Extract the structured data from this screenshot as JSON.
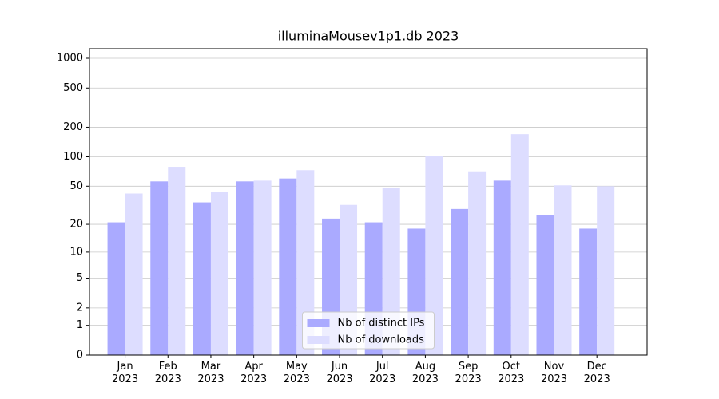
{
  "chart_data": {
    "type": "bar",
    "title": "illuminaMousev1p1.db 2023",
    "categories": [
      "Jan 2023",
      "Feb 2023",
      "Mar 2023",
      "Apr 2023",
      "May 2023",
      "Jun 2023",
      "Jul 2023",
      "Aug 2023",
      "Sep 2023",
      "Oct 2023",
      "Nov 2023",
      "Dec 2023"
    ],
    "series": [
      {
        "name": "Nb of distinct IPs",
        "color": "#aaaaff",
        "values": [
          21,
          56,
          34,
          56,
          60,
          23,
          21,
          18,
          29,
          57,
          25,
          18
        ]
      },
      {
        "name": "Nb of downloads",
        "color": "#ddddff",
        "values": [
          42,
          79,
          44,
          57,
          73,
          32,
          48,
          102,
          71,
          170,
          51,
          50
        ]
      }
    ],
    "yscale": "log1p",
    "ylim": [
      0,
      1250
    ],
    "yticks": [
      0,
      1,
      2,
      5,
      10,
      20,
      50,
      100,
      200,
      500,
      1000
    ],
    "grid": true,
    "legend": "lower center"
  }
}
